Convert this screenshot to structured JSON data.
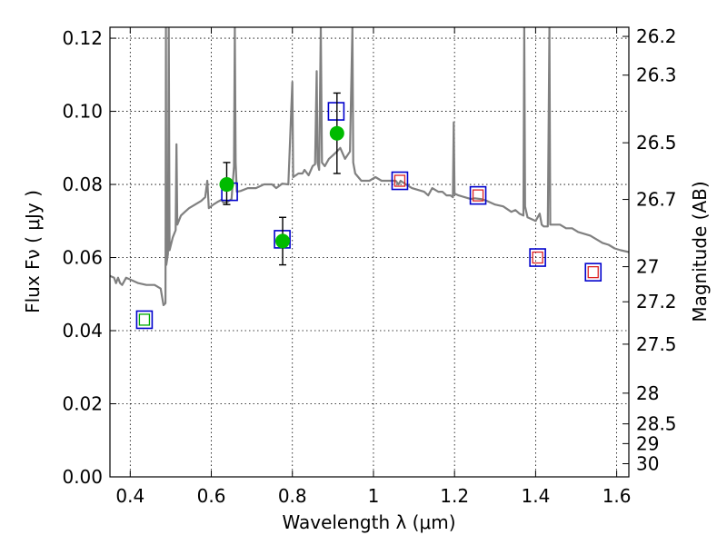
{
  "chart_data": {
    "type": "line",
    "title": "",
    "xlabel": "Wavelength  λ (μm)",
    "ylabel": "Flux  Fν  ( μJy )",
    "y2label": "Magnitude (AB)",
    "xlim": [
      0.35,
      1.63
    ],
    "ylim": [
      0.0,
      0.123
    ],
    "grid": true,
    "x_ticks": [
      {
        "value": 0.4,
        "label": "0.4"
      },
      {
        "value": 0.6,
        "label": "0.6"
      },
      {
        "value": 0.8,
        "label": "0.8"
      },
      {
        "value": 1.0,
        "label": "1"
      },
      {
        "value": 1.2,
        "label": "1.2"
      },
      {
        "value": 1.4,
        "label": "1.4"
      },
      {
        "value": 1.6,
        "label": "1.6"
      }
    ],
    "y_ticks": [
      {
        "value": 0.0,
        "label": "0.00"
      },
      {
        "value": 0.02,
        "label": "0.02"
      },
      {
        "value": 0.04,
        "label": "0.04"
      },
      {
        "value": 0.06,
        "label": "0.06"
      },
      {
        "value": 0.08,
        "label": "0.08"
      },
      {
        "value": 0.1,
        "label": "0.10"
      },
      {
        "value": 0.12,
        "label": "0.12"
      }
    ],
    "y2_ticks": [
      {
        "flux": 0.1205,
        "label": "26.2"
      },
      {
        "flux": 0.1099,
        "label": "26.3"
      },
      {
        "flux": 0.0914,
        "label": "26.5"
      },
      {
        "flux": 0.0759,
        "label": "26.7"
      },
      {
        "flux": 0.0575,
        "label": "27"
      },
      {
        "flux": 0.0479,
        "label": "27.2"
      },
      {
        "flux": 0.0363,
        "label": "27.5"
      },
      {
        "flux": 0.0229,
        "label": "28"
      },
      {
        "flux": 0.0145,
        "label": "28.5"
      },
      {
        "flux": 0.0091,
        "label": "29"
      },
      {
        "flux": 0.0036,
        "label": "30"
      }
    ],
    "model_spectrum": {
      "color": "#808080",
      "points": [
        [
          0.35,
          0.055
        ],
        [
          0.36,
          0.0545
        ],
        [
          0.365,
          0.053
        ],
        [
          0.37,
          0.0545
        ],
        [
          0.375,
          0.053
        ],
        [
          0.38,
          0.0525
        ],
        [
          0.39,
          0.0545
        ],
        [
          0.4,
          0.054
        ],
        [
          0.42,
          0.053
        ],
        [
          0.44,
          0.0525
        ],
        [
          0.46,
          0.0525
        ],
        [
          0.475,
          0.0515
        ],
        [
          0.482,
          0.047
        ],
        [
          0.487,
          0.0475
        ],
        [
          0.488,
          0.123
        ],
        [
          0.489,
          0.058
        ],
        [
          0.493,
          0.061
        ],
        [
          0.495,
          0.123
        ],
        [
          0.497,
          0.062
        ],
        [
          0.505,
          0.0655
        ],
        [
          0.512,
          0.0675
        ],
        [
          0.514,
          0.091
        ],
        [
          0.516,
          0.069
        ],
        [
          0.525,
          0.0715
        ],
        [
          0.535,
          0.0725
        ],
        [
          0.545,
          0.0735
        ],
        [
          0.56,
          0.0745
        ],
        [
          0.575,
          0.0755
        ],
        [
          0.585,
          0.0765
        ],
        [
          0.59,
          0.081
        ],
        [
          0.594,
          0.0735
        ],
        [
          0.605,
          0.0745
        ],
        [
          0.615,
          0.0752
        ],
        [
          0.625,
          0.0758
        ],
        [
          0.63,
          0.075
        ],
        [
          0.64,
          0.0752
        ],
        [
          0.65,
          0.076
        ],
        [
          0.656,
          0.085
        ],
        [
          0.658,
          0.123
        ],
        [
          0.66,
          0.086
        ],
        [
          0.663,
          0.078
        ],
        [
          0.672,
          0.0782
        ],
        [
          0.69,
          0.079
        ],
        [
          0.71,
          0.079
        ],
        [
          0.73,
          0.08
        ],
        [
          0.75,
          0.08
        ],
        [
          0.76,
          0.079
        ],
        [
          0.775,
          0.0802
        ],
        [
          0.79,
          0.08
        ],
        [
          0.8,
          0.108
        ],
        [
          0.802,
          0.082
        ],
        [
          0.815,
          0.083
        ],
        [
          0.825,
          0.083
        ],
        [
          0.83,
          0.084
        ],
        [
          0.84,
          0.0825
        ],
        [
          0.85,
          0.085
        ],
        [
          0.856,
          0.0855
        ],
        [
          0.86,
          0.111
        ],
        [
          0.862,
          0.086
        ],
        [
          0.866,
          0.084
        ],
        [
          0.87,
          0.123
        ],
        [
          0.873,
          0.086
        ],
        [
          0.88,
          0.085
        ],
        [
          0.89,
          0.087
        ],
        [
          0.9,
          0.088
        ],
        [
          0.91,
          0.089
        ],
        [
          0.918,
          0.09
        ],
        [
          0.93,
          0.087
        ],
        [
          0.942,
          0.089
        ],
        [
          0.948,
          0.123
        ],
        [
          0.95,
          0.086
        ],
        [
          0.955,
          0.083
        ],
        [
          0.97,
          0.081
        ],
        [
          0.99,
          0.081
        ],
        [
          1.005,
          0.082
        ],
        [
          1.02,
          0.081
        ],
        [
          1.04,
          0.081
        ],
        [
          1.055,
          0.081
        ],
        [
          1.062,
          0.08
        ],
        [
          1.067,
          0.081
        ],
        [
          1.08,
          0.08
        ],
        [
          1.095,
          0.079
        ],
        [
          1.11,
          0.0785
        ],
        [
          1.125,
          0.078
        ],
        [
          1.135,
          0.077
        ],
        [
          1.145,
          0.079
        ],
        [
          1.16,
          0.078
        ],
        [
          1.17,
          0.078
        ],
        [
          1.18,
          0.077
        ],
        [
          1.19,
          0.077
        ],
        [
          1.196,
          0.0765
        ],
        [
          1.198,
          0.097
        ],
        [
          1.2,
          0.0775
        ],
        [
          1.21,
          0.077
        ],
        [
          1.225,
          0.0765
        ],
        [
          1.24,
          0.076
        ],
        [
          1.25,
          0.0762
        ],
        [
          1.265,
          0.076
        ],
        [
          1.28,
          0.0755
        ],
        [
          1.3,
          0.0745
        ],
        [
          1.32,
          0.074
        ],
        [
          1.34,
          0.0725
        ],
        [
          1.35,
          0.073
        ],
        [
          1.36,
          0.072
        ],
        [
          1.37,
          0.0715
        ],
        [
          1.372,
          0.123
        ],
        [
          1.374,
          0.074
        ],
        [
          1.38,
          0.071
        ],
        [
          1.4,
          0.07
        ],
        [
          1.41,
          0.072
        ],
        [
          1.415,
          0.069
        ],
        [
          1.42,
          0.0685
        ],
        [
          1.43,
          0.0685
        ],
        [
          1.434,
          0.123
        ],
        [
          1.436,
          0.069
        ],
        [
          1.445,
          0.069
        ],
        [
          1.46,
          0.069
        ],
        [
          1.475,
          0.068
        ],
        [
          1.49,
          0.068
        ],
        [
          1.505,
          0.067
        ],
        [
          1.52,
          0.0665
        ],
        [
          1.535,
          0.066
        ],
        [
          1.55,
          0.065
        ],
        [
          1.565,
          0.064
        ],
        [
          1.58,
          0.0635
        ],
        [
          1.595,
          0.0625
        ],
        [
          1.61,
          0.062
        ],
        [
          1.63,
          0.0615
        ]
      ]
    },
    "synthetic_photometry": {
      "color": "#0000cc",
      "points": [
        [
          0.435,
          0.043
        ],
        [
          0.645,
          0.078
        ],
        [
          0.775,
          0.065
        ],
        [
          0.908,
          0.1
        ],
        [
          1.065,
          0.081
        ],
        [
          1.258,
          0.077
        ],
        [
          1.405,
          0.06
        ],
        [
          1.542,
          0.056
        ]
      ]
    },
    "observed_detections": {
      "color": "#00bb00",
      "points": [
        {
          "x": 0.638,
          "y": 0.08,
          "yerr_low": 0.0055,
          "yerr_high": 0.006
        },
        {
          "x": 0.776,
          "y": 0.0645,
          "yerr_low": 0.0065,
          "yerr_high": 0.0065
        },
        {
          "x": 0.91,
          "y": 0.094,
          "yerr_low": 0.011,
          "yerr_high": 0.011
        }
      ]
    },
    "inner_markers": [
      {
        "x": 0.435,
        "y": 0.043,
        "color": "#00aa00"
      },
      {
        "x": 1.065,
        "y": 0.081,
        "color": "#dd2222"
      },
      {
        "x": 1.258,
        "y": 0.077,
        "color": "#dd2222"
      },
      {
        "x": 1.405,
        "y": 0.06,
        "color": "#dd2222"
      },
      {
        "x": 1.542,
        "y": 0.056,
        "color": "#dd2222"
      }
    ]
  }
}
